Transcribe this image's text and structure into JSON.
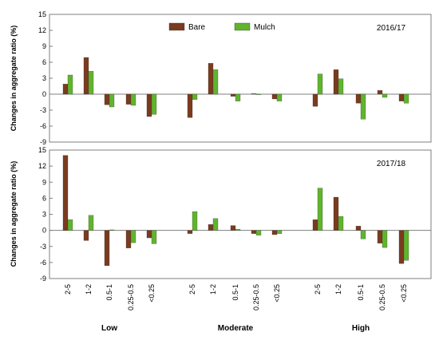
{
  "colors": {
    "bare": "#7a3b1f",
    "mulch": "#5fb52c",
    "frame": "#7f7f7f"
  },
  "legend": [
    {
      "key": "bare",
      "label": "Bare"
    },
    {
      "key": "mulch",
      "label": "Mulch"
    }
  ],
  "chart_data": [
    {
      "type": "bar",
      "title": "2016/17",
      "ylabel": "Changes in aggregate ratio (%)",
      "ylim": [
        -9,
        15
      ],
      "yticks": [
        -9,
        -6,
        -3,
        0,
        3,
        6,
        9,
        12,
        15
      ],
      "groups": [
        "Low",
        "Moderate",
        "High"
      ],
      "categories": [
        "2-5",
        "1-2",
        "0.5-1",
        "0.25-0.5",
        "<0.25"
      ],
      "series": [
        {
          "name": "Bare",
          "values": [
            [
              1.9,
              6.9,
              -2.0,
              -1.9,
              -4.2
            ],
            [
              -4.4,
              5.8,
              -0.4,
              0.1,
              -0.9
            ],
            [
              -2.3,
              4.6,
              -1.7,
              0.7,
              -1.3
            ]
          ]
        },
        {
          "name": "Mulch",
          "values": [
            [
              3.6,
              4.3,
              -2.4,
              -2.1,
              -3.8
            ],
            [
              -1.0,
              4.6,
              -1.3,
              0.0,
              -1.3
            ],
            [
              3.8,
              2.9,
              -4.7,
              -0.6,
              -1.7
            ]
          ]
        }
      ]
    },
    {
      "type": "bar",
      "title": "2017/18",
      "ylabel": "Changes in aggregate ratio (%)",
      "ylim": [
        -9,
        15
      ],
      "yticks": [
        -9,
        -6,
        -3,
        0,
        3,
        6,
        9,
        12,
        15
      ],
      "groups": [
        "Low",
        "Moderate",
        "High"
      ],
      "categories": [
        "2-5",
        "1-2",
        "0.5-1",
        "0.25-0.5",
        "<0.25"
      ],
      "series": [
        {
          "name": "Bare",
          "values": [
            [
              14.0,
              -1.9,
              -6.6,
              -3.3,
              -1.4
            ],
            [
              -0.6,
              1.1,
              0.9,
              -0.6,
              -0.8
            ],
            [
              2.0,
              6.2,
              0.8,
              -2.4,
              -6.2
            ]
          ]
        },
        {
          "name": "Mulch",
          "values": [
            [
              2.0,
              2.8,
              0.1,
              -2.3,
              -2.5
            ],
            [
              3.5,
              2.2,
              0.2,
              -0.9,
              -0.6
            ],
            [
              7.9,
              2.6,
              -1.6,
              -3.2,
              -5.6
            ]
          ]
        }
      ]
    }
  ]
}
